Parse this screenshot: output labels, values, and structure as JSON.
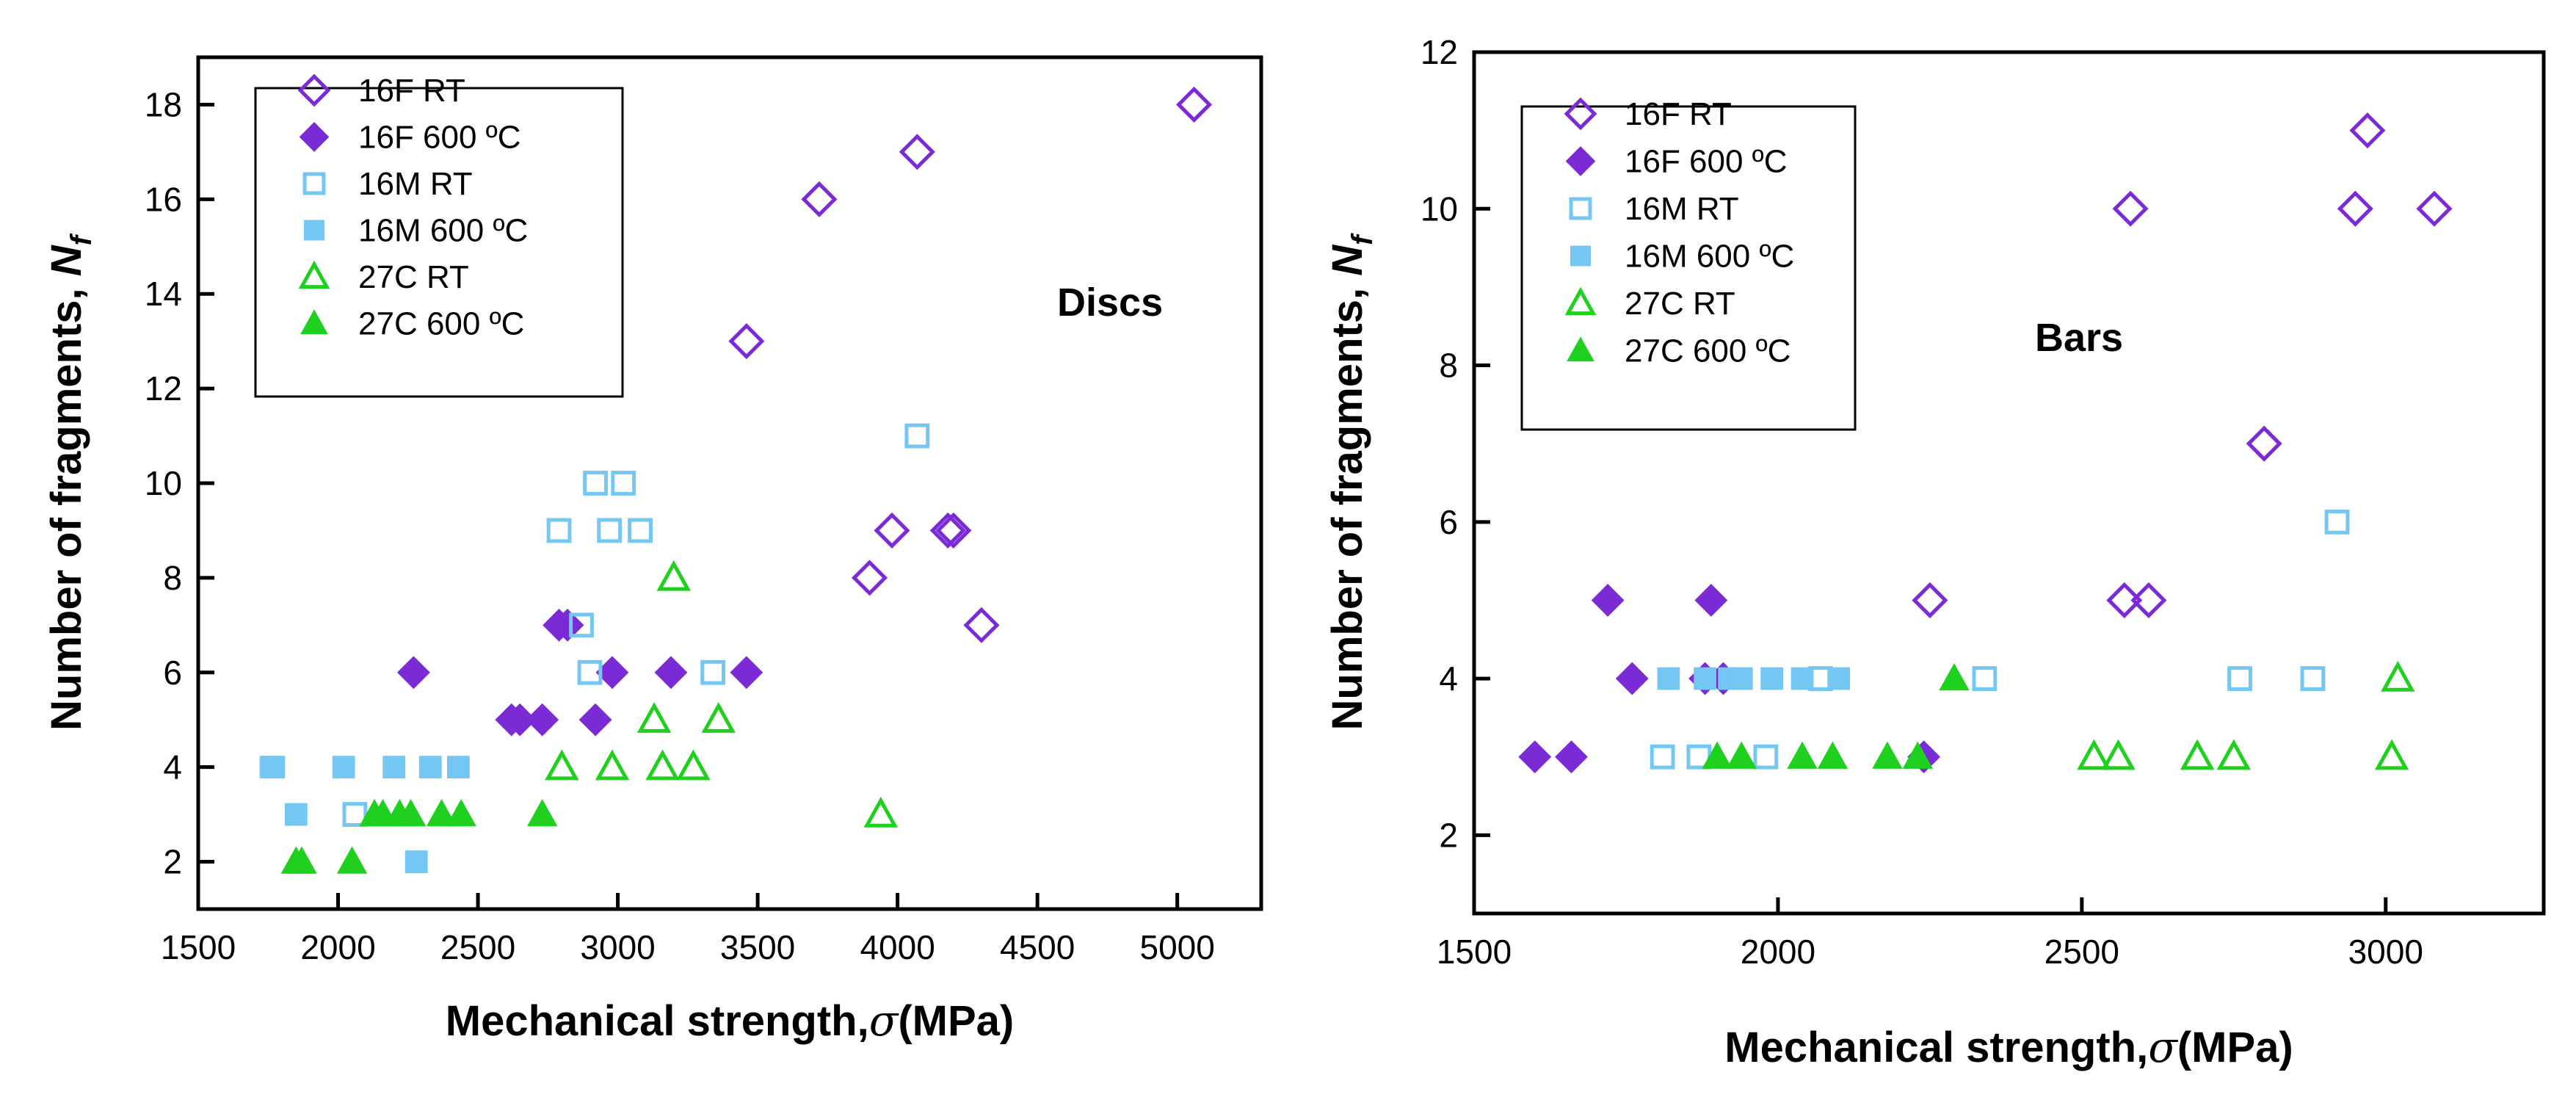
{
  "styles": {
    "16F RT": {
      "shape": "diamond",
      "filled": false,
      "color": "#7a2bd6"
    },
    "16F 600 ºC": {
      "shape": "diamond",
      "filled": true,
      "color": "#7a2bd6"
    },
    "16M RT": {
      "shape": "square",
      "filled": false,
      "color": "#74c7f2"
    },
    "16M 600 ºC": {
      "shape": "square",
      "filled": true,
      "color": "#74c7f2"
    },
    "27C RT": {
      "shape": "triangle",
      "filled": false,
      "color": "#1fd01f"
    },
    "27C 600 ºC": {
      "shape": "triangle",
      "filled": true,
      "color": "#1fd01f"
    }
  },
  "chart_data": [
    {
      "type": "scatter",
      "panel_label": "Discs",
      "xlabel_prefix": "Mechanical strength,",
      "xlabel_symbol": "σ",
      "xlabel_suffix": "(MPa)",
      "ylabel_prefix": "Number of fragments, ",
      "ylabel_symbol": "N",
      "ylabel_sub": "f",
      "xlim": [
        1500,
        5300
      ],
      "ylim": [
        1,
        19
      ],
      "xticks": [
        1500,
        2000,
        2500,
        3000,
        3500,
        4000,
        4500,
        5000
      ],
      "yticks": [
        2,
        4,
        6,
        8,
        10,
        12,
        14,
        16,
        18
      ],
      "legend_position": "top-left",
      "series": [
        {
          "name": "16F RT",
          "points": [
            [
              3460,
              13
            ],
            [
              3720,
              16
            ],
            [
              4070,
              17
            ],
            [
              5060,
              18
            ],
            [
              3900,
              8
            ],
            [
              3980,
              9
            ],
            [
              4180,
              9
            ],
            [
              4200,
              9
            ],
            [
              4300,
              7
            ]
          ]
        },
        {
          "name": "16F 600 ºC",
          "points": [
            [
              2270,
              6
            ],
            [
              2620,
              5
            ],
            [
              2650,
              5
            ],
            [
              2730,
              5
            ],
            [
              2790,
              7
            ],
            [
              2820,
              7
            ],
            [
              2920,
              5
            ],
            [
              2980,
              6
            ],
            [
              3190,
              6
            ],
            [
              3460,
              6
            ]
          ]
        },
        {
          "name": "16M RT",
          "points": [
            [
              2060,
              3
            ],
            [
              2790,
              9
            ],
            [
              2870,
              7
            ],
            [
              2920,
              10
            ],
            [
              2900,
              6
            ],
            [
              2970,
              9
            ],
            [
              3020,
              10
            ],
            [
              3080,
              9
            ],
            [
              3340,
              6
            ],
            [
              4070,
              11
            ]
          ]
        },
        {
          "name": "16M 600 ºC",
          "points": [
            [
              1760,
              4
            ],
            [
              1770,
              4
            ],
            [
              1850,
              3
            ],
            [
              2020,
              4
            ],
            [
              2200,
              4
            ],
            [
              2280,
              2
            ],
            [
              2330,
              4
            ],
            [
              2430,
              4
            ]
          ]
        },
        {
          "name": "27C RT",
          "points": [
            [
              2800,
              4
            ],
            [
              2980,
              4
            ],
            [
              3130,
              5
            ],
            [
              3160,
              4
            ],
            [
              3200,
              8
            ],
            [
              3270,
              4
            ],
            [
              3360,
              5
            ],
            [
              3940,
              3
            ]
          ]
        },
        {
          "name": "27C 600 ºC",
          "points": [
            [
              1850,
              2
            ],
            [
              1870,
              2
            ],
            [
              2050,
              2
            ],
            [
              2130,
              3
            ],
            [
              2160,
              3
            ],
            [
              2220,
              3
            ],
            [
              2260,
              3
            ],
            [
              2370,
              3
            ],
            [
              2440,
              3
            ],
            [
              2730,
              3
            ]
          ]
        }
      ]
    },
    {
      "type": "scatter",
      "panel_label": "Bars",
      "xlabel_prefix": "Mechanical strength,",
      "xlabel_symbol": "σ",
      "xlabel_suffix": "(MPa)",
      "ylabel_prefix": "Number of fragments, ",
      "ylabel_symbol": "N",
      "ylabel_sub": "f",
      "xlim": [
        1500,
        3260
      ],
      "ylim": [
        1,
        12
      ],
      "xticks": [
        1500,
        2000,
        2500,
        3000
      ],
      "yticks": [
        2,
        4,
        6,
        8,
        10,
        12
      ],
      "legend_position": "top-left",
      "series": [
        {
          "name": "16F RT",
          "points": [
            [
              2250,
              5
            ],
            [
              2570,
              5
            ],
            [
              2580,
              10
            ],
            [
              2610,
              5
            ],
            [
              2800,
              7
            ],
            [
              2950,
              10
            ],
            [
              2970,
              11
            ],
            [
              3080,
              10
            ]
          ]
        },
        {
          "name": "16F 600 ºC",
          "points": [
            [
              1600,
              3
            ],
            [
              1660,
              3
            ],
            [
              1720,
              5
            ],
            [
              1760,
              4
            ],
            [
              1880,
              4
            ],
            [
              1890,
              5
            ],
            [
              1910,
              4
            ],
            [
              2240,
              3
            ]
          ]
        },
        {
          "name": "16M RT",
          "points": [
            [
              1810,
              3
            ],
            [
              1870,
              3
            ],
            [
              1980,
              3
            ],
            [
              2070,
              4
            ],
            [
              2340,
              4
            ],
            [
              2760,
              4
            ],
            [
              2880,
              4
            ],
            [
              2920,
              6
            ]
          ]
        },
        {
          "name": "16M 600 ºC",
          "points": [
            [
              1820,
              4
            ],
            [
              1880,
              4
            ],
            [
              1920,
              4
            ],
            [
              1940,
              4
            ],
            [
              1990,
              4
            ],
            [
              2040,
              4
            ],
            [
              2100,
              4
            ]
          ]
        },
        {
          "name": "27C RT",
          "points": [
            [
              2520,
              3
            ],
            [
              2560,
              3
            ],
            [
              2690,
              3
            ],
            [
              2750,
              3
            ],
            [
              3010,
              3
            ],
            [
              3020,
              4
            ]
          ]
        },
        {
          "name": "27C 600 ºC",
          "points": [
            [
              1900,
              3
            ],
            [
              1940,
              3
            ],
            [
              2040,
              3
            ],
            [
              2090,
              3
            ],
            [
              2180,
              3
            ],
            [
              2230,
              3
            ],
            [
              2290,
              4
            ]
          ]
        }
      ]
    }
  ]
}
